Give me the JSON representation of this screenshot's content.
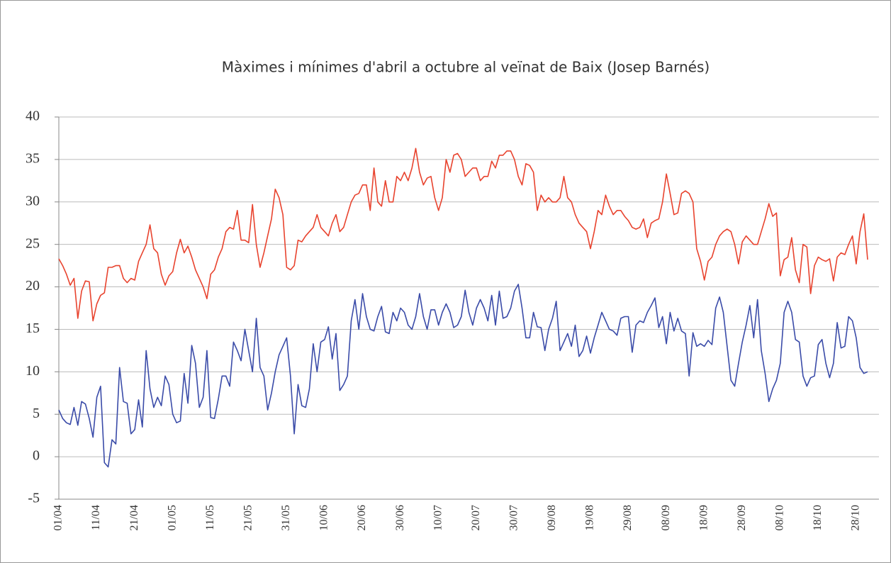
{
  "chart_data": {
    "type": "line",
    "title": "Màximes i mínimes d'abril a octubre al veïnat de Baix (Josep Barnés)",
    "categories": [
      "01/04",
      null,
      null,
      null,
      null,
      null,
      null,
      null,
      null,
      null,
      "11/04",
      null,
      null,
      null,
      null,
      null,
      null,
      null,
      null,
      null,
      "21/04",
      null,
      null,
      null,
      null,
      null,
      null,
      null,
      null,
      null,
      "01/05",
      null,
      null,
      null,
      null,
      null,
      null,
      null,
      null,
      null,
      "11/05",
      null,
      null,
      null,
      null,
      null,
      null,
      null,
      null,
      null,
      "21/05",
      null,
      null,
      null,
      null,
      null,
      null,
      null,
      null,
      null,
      "31/05",
      null,
      null,
      null,
      null,
      null,
      null,
      null,
      null,
      null,
      "10/06",
      null,
      null,
      null,
      null,
      null,
      null,
      null,
      null,
      null,
      "20/06",
      null,
      null,
      null,
      null,
      null,
      null,
      null,
      null,
      null,
      "30/06",
      null,
      null,
      null,
      null,
      null,
      null,
      null,
      null,
      null,
      "10/07",
      null,
      null,
      null,
      null,
      null,
      null,
      null,
      null,
      null,
      "20/07",
      null,
      null,
      null,
      null,
      null,
      null,
      null,
      null,
      null,
      "30/07",
      null,
      null,
      null,
      null,
      null,
      null,
      null,
      null,
      null,
      "09/08",
      null,
      null,
      null,
      null,
      null,
      null,
      null,
      null,
      null,
      "19/08",
      null,
      null,
      null,
      null,
      null,
      null,
      null,
      null,
      null,
      "29/08",
      null,
      null,
      null,
      null,
      null,
      null,
      null,
      null,
      null,
      "08/09",
      null,
      null,
      null,
      null,
      null,
      null,
      null,
      null,
      null,
      "18/09",
      null,
      null,
      null,
      null,
      null,
      null,
      null,
      null,
      null,
      "28/09",
      null,
      null,
      null,
      null,
      null,
      null,
      null,
      null,
      null,
      "08/10",
      null,
      null,
      null,
      null,
      null,
      null,
      null,
      null,
      null,
      "18/10",
      null,
      null,
      null,
      null,
      null,
      null,
      null,
      null,
      null,
      "28/10",
      null,
      null,
      null
    ],
    "series": [
      {
        "color": "#e8432e",
        "values": [
          23.3,
          22.5,
          21.5,
          20.2,
          21,
          16.3,
          19.5,
          20.7,
          20.6,
          16,
          18,
          19,
          19.3,
          22.3,
          22.3,
          22.5,
          22.5,
          21,
          20.5,
          21,
          20.8,
          23,
          24,
          25,
          27.3,
          24.5,
          24,
          21.5,
          20.2,
          21.3,
          21.8,
          24,
          25.6,
          24,
          24.8,
          23.5,
          22,
          21,
          20,
          18.6,
          21.5,
          22,
          23.5,
          24.5,
          26.5,
          27,
          26.8,
          29,
          25.5,
          25.5,
          25.2,
          29.7,
          25,
          22.3,
          24,
          26,
          28,
          31.5,
          30.5,
          28.5,
          22.3,
          22,
          22.5,
          25.5,
          25.3,
          26,
          26.5,
          27,
          28.5,
          27,
          26.5,
          26,
          27.5,
          28.5,
          26.5,
          27,
          28.5,
          30,
          30.8,
          31,
          32,
          32,
          29,
          34,
          30,
          29.5,
          32.5,
          30,
          30,
          33,
          32.5,
          33.5,
          32.5,
          34,
          36.3,
          33.5,
          32,
          32.8,
          33,
          30.5,
          29,
          30.5,
          35,
          33.5,
          35.5,
          35.7,
          35,
          33,
          33.5,
          34,
          34,
          32.5,
          33,
          33,
          34.8,
          34,
          35.5,
          35.5,
          36,
          36,
          35,
          33,
          32,
          34.5,
          34.3,
          33.5,
          29,
          30.8,
          30,
          30.5,
          30,
          30,
          30.5,
          33,
          30.5,
          30,
          28.5,
          27.5,
          27,
          26.5,
          24.5,
          26.5,
          29,
          28.5,
          30.8,
          29.5,
          28.5,
          29,
          29,
          28.3,
          27.8,
          27,
          26.8,
          27,
          28,
          25.8,
          27.5,
          27.8,
          28,
          30,
          33.3,
          31,
          28.5,
          28.7,
          31,
          31.3,
          31,
          30,
          24.5,
          23,
          20.8,
          23,
          23.5,
          25,
          26,
          26.5,
          26.8,
          26.5,
          25,
          22.7,
          25.3,
          26,
          25.5,
          25,
          25,
          26.5,
          28,
          29.8,
          28.3,
          28.7,
          21.3,
          23.2,
          23.5,
          25.8,
          22,
          20.5,
          25,
          24.7,
          19.2,
          22.5,
          23.5,
          23.2,
          23,
          23.3,
          20.7,
          23.5,
          24,
          23.8,
          25,
          26,
          22.7,
          26.5,
          28.6,
          23.2
        ]
      },
      {
        "color": "#3a4ba8",
        "values": [
          5.5,
          4.5,
          4,
          3.8,
          5.8,
          3.7,
          6.5,
          6.2,
          4.5,
          2.3,
          7,
          8.3,
          -0.7,
          -1.2,
          2,
          1.5,
          10.5,
          6.5,
          6.3,
          2.7,
          3.2,
          6.7,
          3.5,
          12.5,
          8,
          5.8,
          7,
          6,
          9.5,
          8.5,
          5,
          4,
          4.2,
          9.8,
          6.3,
          13.1,
          11,
          5.8,
          7,
          12.5,
          4.6,
          4.5,
          6.8,
          9.5,
          9.5,
          8.3,
          13.5,
          12.5,
          11.3,
          15,
          12.5,
          10,
          16.3,
          10.5,
          9.5,
          5.5,
          7.5,
          10,
          12,
          13,
          14,
          9.5,
          2.7,
          8.5,
          6,
          5.8,
          8,
          13.3,
          10,
          13.5,
          13.8,
          15.3,
          11.5,
          14.5,
          7.8,
          8.5,
          9.5,
          16,
          18.5,
          15,
          19.2,
          16.5,
          15,
          14.8,
          16.5,
          17.7,
          14.7,
          14.5,
          17,
          16,
          17.5,
          17,
          15.5,
          15,
          16.5,
          19.2,
          16.5,
          15,
          17.3,
          17.3,
          15.5,
          17,
          18,
          17,
          15.2,
          15.5,
          16.5,
          19.6,
          17,
          15.5,
          17.5,
          18.5,
          17.5,
          16,
          19,
          15.5,
          19.5,
          16.3,
          16.5,
          17.5,
          19.5,
          20.3,
          17.5,
          14,
          14,
          17,
          15.3,
          15.2,
          12.5,
          15,
          16.3,
          18.3,
          12.5,
          13.5,
          14.5,
          13,
          15.5,
          11.8,
          12.5,
          14.2,
          12.2,
          14,
          15.5,
          17,
          16,
          15,
          14.8,
          14.3,
          16.3,
          16.5,
          16.5,
          12.3,
          15.5,
          16,
          15.8,
          17,
          17.8,
          18.7,
          15.2,
          16.5,
          13.3,
          17,
          14.8,
          16.3,
          14.8,
          14.5,
          9.5,
          14.6,
          13,
          13.3,
          13,
          13.7,
          13.2,
          17.5,
          18.8,
          17,
          13,
          9,
          8.3,
          11,
          13.5,
          15.5,
          17.8,
          14,
          18.5,
          12.5,
          9.8,
          6.5,
          8,
          9,
          11,
          17,
          18.3,
          17,
          13.8,
          13.5,
          9.5,
          8.3,
          9.3,
          9.5,
          13.2,
          13.8,
          11,
          9.3,
          11,
          15.8,
          12.8,
          13,
          16.5,
          16,
          14,
          10.5,
          9.8,
          10
        ]
      }
    ],
    "ylim": [
      -5,
      40
    ],
    "yticks": [
      -5,
      0,
      5,
      10,
      15,
      20,
      25,
      30,
      35,
      40
    ],
    "grid": true
  }
}
